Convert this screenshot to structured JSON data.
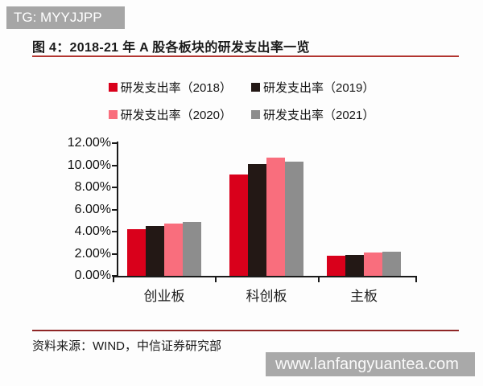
{
  "badge": {
    "text": "TG: MYYJJPP",
    "bg": "#a6a6a6"
  },
  "figure": {
    "title": "图 4：2018-21 年 A 股各板块的研发支出率一览",
    "source": "资料来源：WIND，中信证券研究部"
  },
  "watermark": {
    "text": "www.lanfangyuantea.com",
    "bg": "#a9a9a9"
  },
  "colors": {
    "title_rule": "#b23530",
    "footer_rule": "#8f2626",
    "axis": "#1a1a1a"
  },
  "chart_data": {
    "type": "bar",
    "categories": [
      "创业板",
      "科创板",
      "主板"
    ],
    "series": [
      {
        "name": "研发支出率（2018）",
        "color": "#d9001b",
        "values": [
          4.2,
          9.2,
          1.8
        ]
      },
      {
        "name": "研发支出率（2019）",
        "color": "#231815",
        "values": [
          4.5,
          10.1,
          1.9
        ]
      },
      {
        "name": "研发支出率（2020）",
        "color": "#f96e7d",
        "values": [
          4.7,
          10.7,
          2.1
        ]
      },
      {
        "name": "研发支出率（2021）",
        "color": "#8d8d8d",
        "values": [
          4.9,
          10.3,
          2.2
        ]
      }
    ],
    "ylabel": "",
    "xlabel": "",
    "ylim": [
      0,
      12
    ],
    "ytick_step": 2,
    "ytick_labels": [
      "0.00%",
      "2.00%",
      "4.00%",
      "6.00%",
      "8.00%",
      "10.00%",
      "12.00%"
    ],
    "legend_position": "top",
    "legend_rows": [
      [
        0,
        1
      ],
      [
        2,
        3
      ]
    ],
    "grid": false
  }
}
